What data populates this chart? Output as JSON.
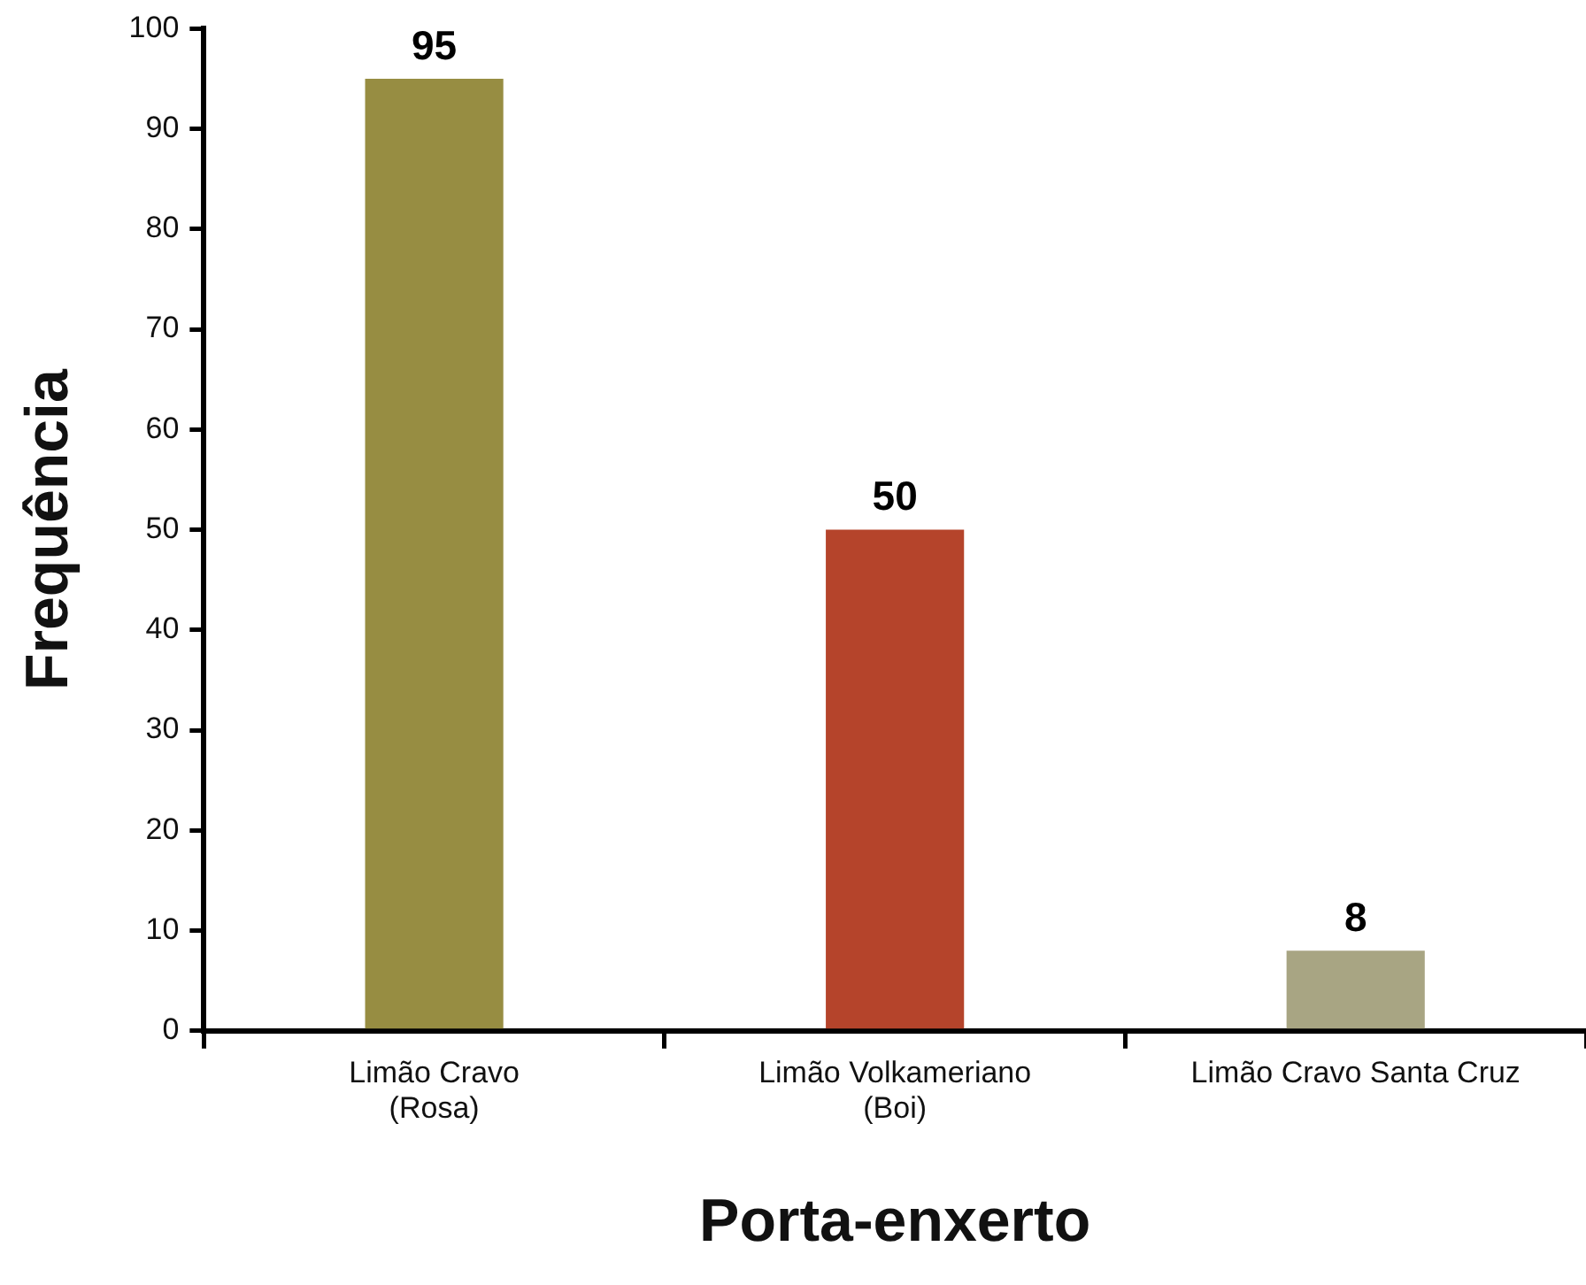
{
  "chart_data": {
    "type": "bar",
    "categories": [
      "Limão Cravo\n(Rosa)",
      "Limão Volkameriano\n(Boi)",
      "Limão Cravo Santa Cruz"
    ],
    "values": [
      95,
      50,
      8
    ],
    "colors": [
      "#978d42",
      "#b5442b",
      "#a8a583"
    ],
    "xlabel": "Porta-enxerto",
    "ylabel": "Frequência",
    "ylim": [
      0,
      100
    ],
    "yticks": [
      0,
      10,
      20,
      30,
      40,
      50,
      60,
      70,
      80,
      90,
      100
    ],
    "data_labels": true,
    "grid": false,
    "legend": false
  }
}
